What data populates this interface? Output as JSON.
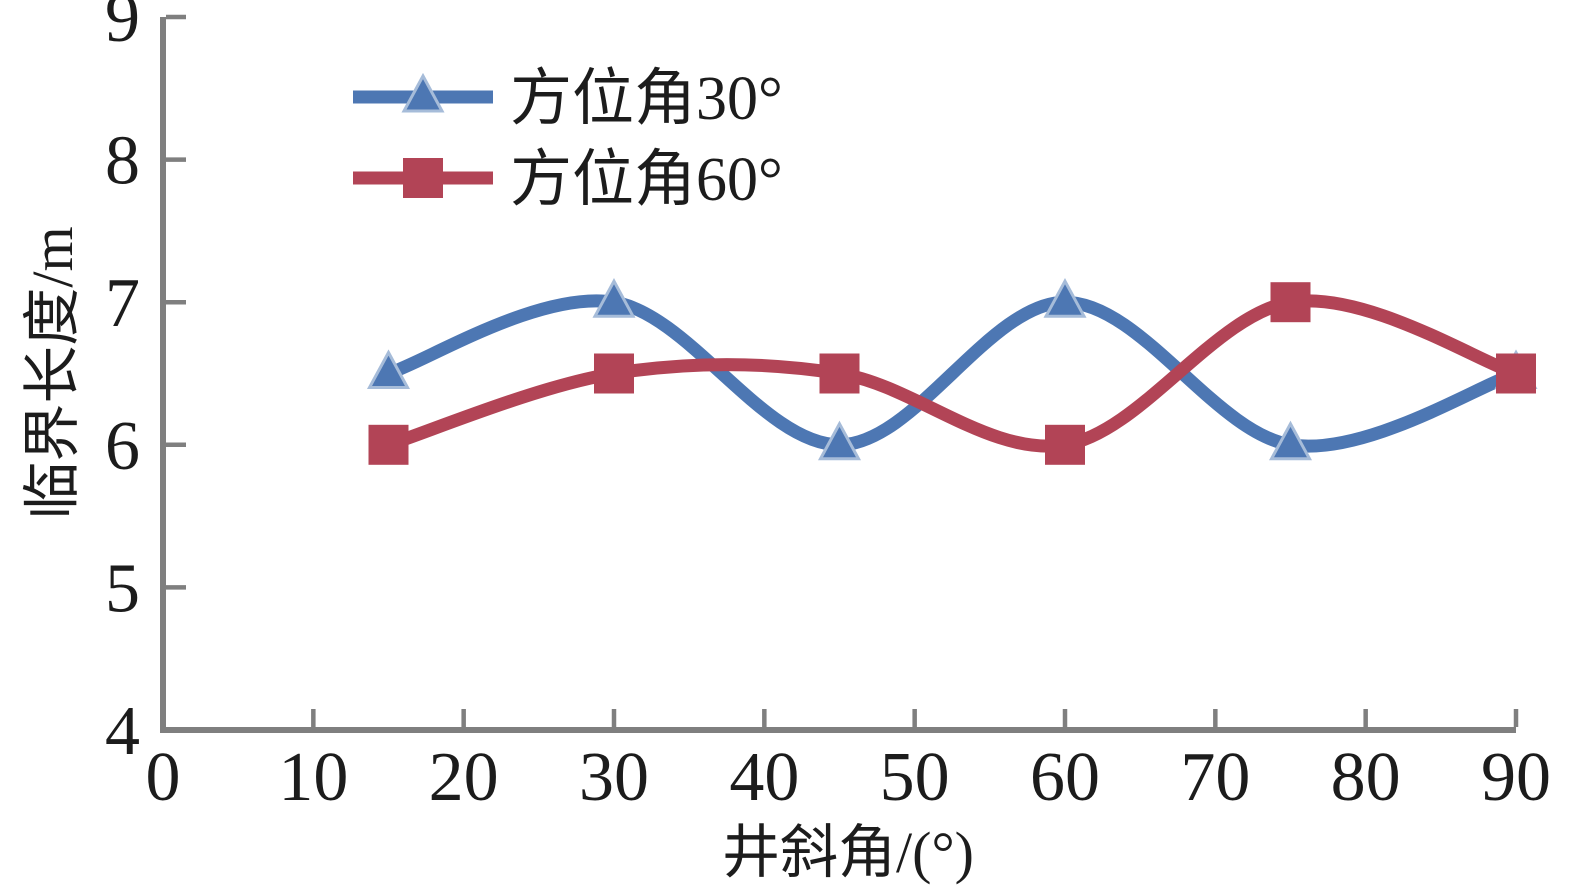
{
  "figure": {
    "background": "#ffffff"
  },
  "chart_data": {
    "type": "line",
    "title": "",
    "xlabel": "井斜角/(°)",
    "ylabel": "临界长度/m",
    "xlim": [
      0,
      90
    ],
    "ylim": [
      4,
      9
    ],
    "x_ticks": [
      0,
      10,
      20,
      30,
      40,
      50,
      60,
      70,
      80,
      90
    ],
    "y_ticks": [
      4,
      5,
      6,
      7,
      8,
      9
    ],
    "grid": false,
    "smooth_lines": true,
    "legend_position": "inside-top-left",
    "axis_color": "#7f7f7f",
    "text_color": "#1c1c1c",
    "x": [
      15,
      30,
      45,
      60,
      75,
      90
    ],
    "series": [
      {
        "name": "方位角30°",
        "color": "#4d77b3",
        "marker": "triangle",
        "marker_edge": "#a6bcd9",
        "values": [
          6.5,
          7.0,
          6.0,
          7.0,
          6.0,
          6.5
        ]
      },
      {
        "name": "方位角60°",
        "color": "#b24456",
        "marker": "square",
        "marker_edge": "#cb8b96",
        "values": [
          6.0,
          6.5,
          6.5,
          6.0,
          7.0,
          6.5
        ]
      }
    ]
  }
}
